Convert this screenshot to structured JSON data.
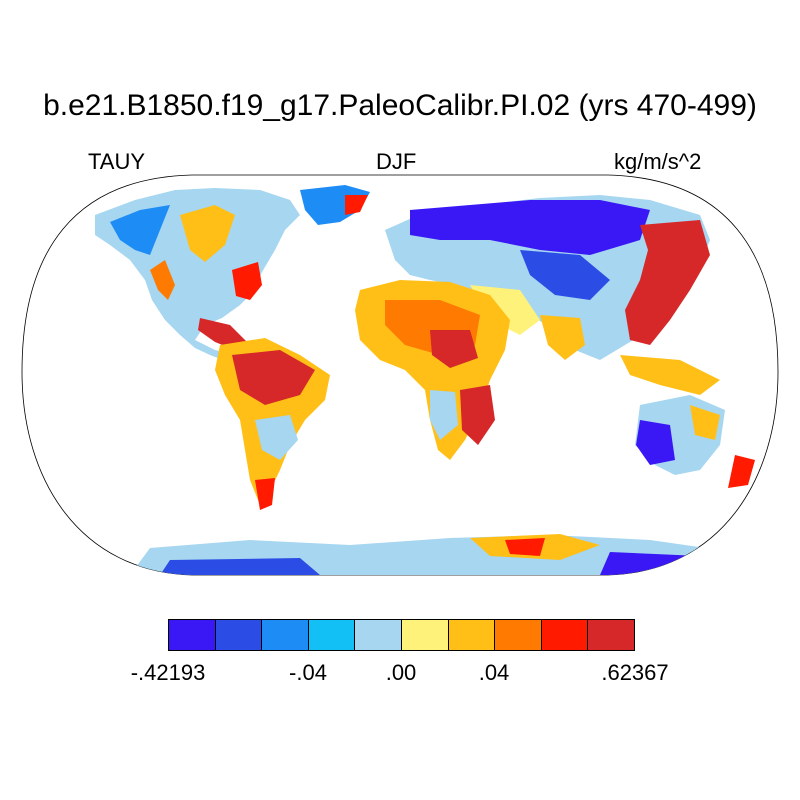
{
  "title": "b.e21.B1850.f19_g17.PaleoCalibr.PI.02 (yrs 470-499)",
  "left_label": "TAUY",
  "center_label": "DJF",
  "right_label": "kg/m/s^2",
  "colorbar": {
    "colors": [
      "#3a18f5",
      "#2b4de6",
      "#1e8cf5",
      "#12c0f5",
      "#a6d6f0",
      "#fff27a",
      "#ffbf17",
      "#ff7a00",
      "#ff1a00",
      "#d62828"
    ],
    "labels": [
      "-.42193",
      "-.04",
      ".00",
      ".04",
      ".62367"
    ]
  }
}
